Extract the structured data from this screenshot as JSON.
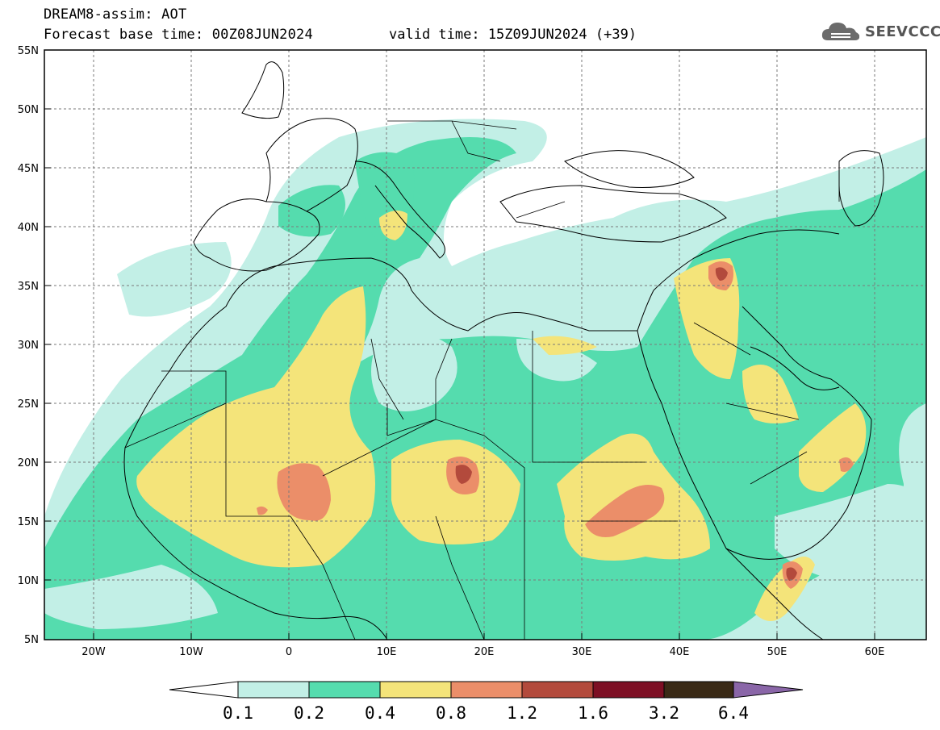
{
  "header": {
    "title": "DREAM8-assim: AOT",
    "base_time": "Forecast base time: 00Z08JUN2024",
    "valid_time": "valid time: 15Z09JUN2024 (+39)"
  },
  "logo": {
    "icon": "cloud-icon",
    "text": "SEEVCCC"
  },
  "map": {
    "lat_range": [
      5,
      55
    ],
    "lon_range": [
      -25,
      65
    ],
    "lat_ticks": [
      "5N",
      "10N",
      "15N",
      "20N",
      "25N",
      "30N",
      "35N",
      "40N",
      "45N",
      "50N",
      "55N"
    ],
    "lon_ticks": [
      "20W",
      "10W",
      "0",
      "10E",
      "20E",
      "30E",
      "40E",
      "50E",
      "60E"
    ]
  },
  "legend": {
    "thresholds": [
      "0.1",
      "0.2",
      "0.4",
      "0.8",
      "1.2",
      "1.6",
      "3.2",
      "6.4"
    ],
    "colors": [
      "#ffffff",
      "#c2efe6",
      "#55dcae",
      "#f4e47a",
      "#eb8e69",
      "#b34a3c",
      "#7d0f24",
      "#3a2a16",
      "#8a66a8"
    ]
  },
  "colors": {
    "low": "#c2efe6",
    "moderate": "#55dcae",
    "high": "#f4e47a",
    "very_high": "#eb8e69",
    "extreme": "#b34a3c"
  }
}
